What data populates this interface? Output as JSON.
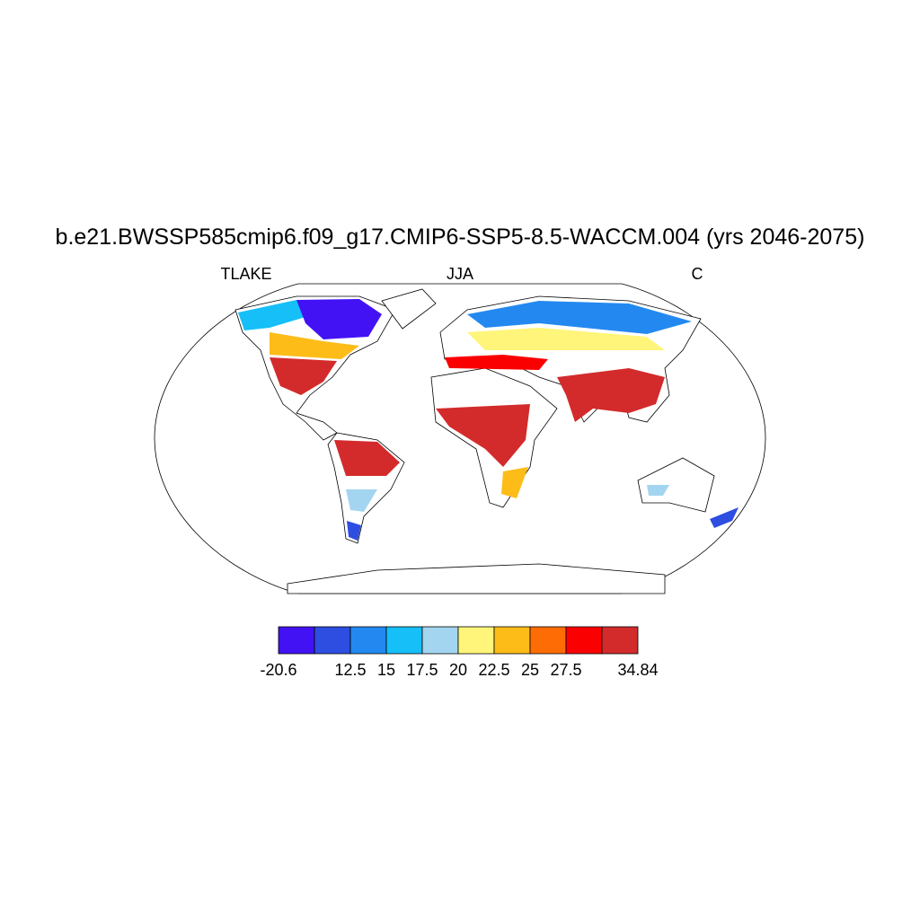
{
  "title": "b.e21.BWSSP585cmip6.f09_g17.CMIP6-SSP5-8.5-WACCM.004 (yrs 2046-2075)",
  "left_label": "TLAKE",
  "center_label": "JJA",
  "right_label": "C",
  "colorbar": {
    "colors": [
      "#4212f5",
      "#2d4ee0",
      "#2389f0",
      "#16bff7",
      "#a3d5f0",
      "#fff57a",
      "#fdbc18",
      "#fe6d05",
      "#fb0000",
      "#d32b2b"
    ],
    "labels": [
      "-20.6",
      null,
      "12.5",
      "15",
      "17.5",
      "20",
      "22.5",
      "25",
      "27.5",
      null,
      "34.84"
    ]
  }
}
